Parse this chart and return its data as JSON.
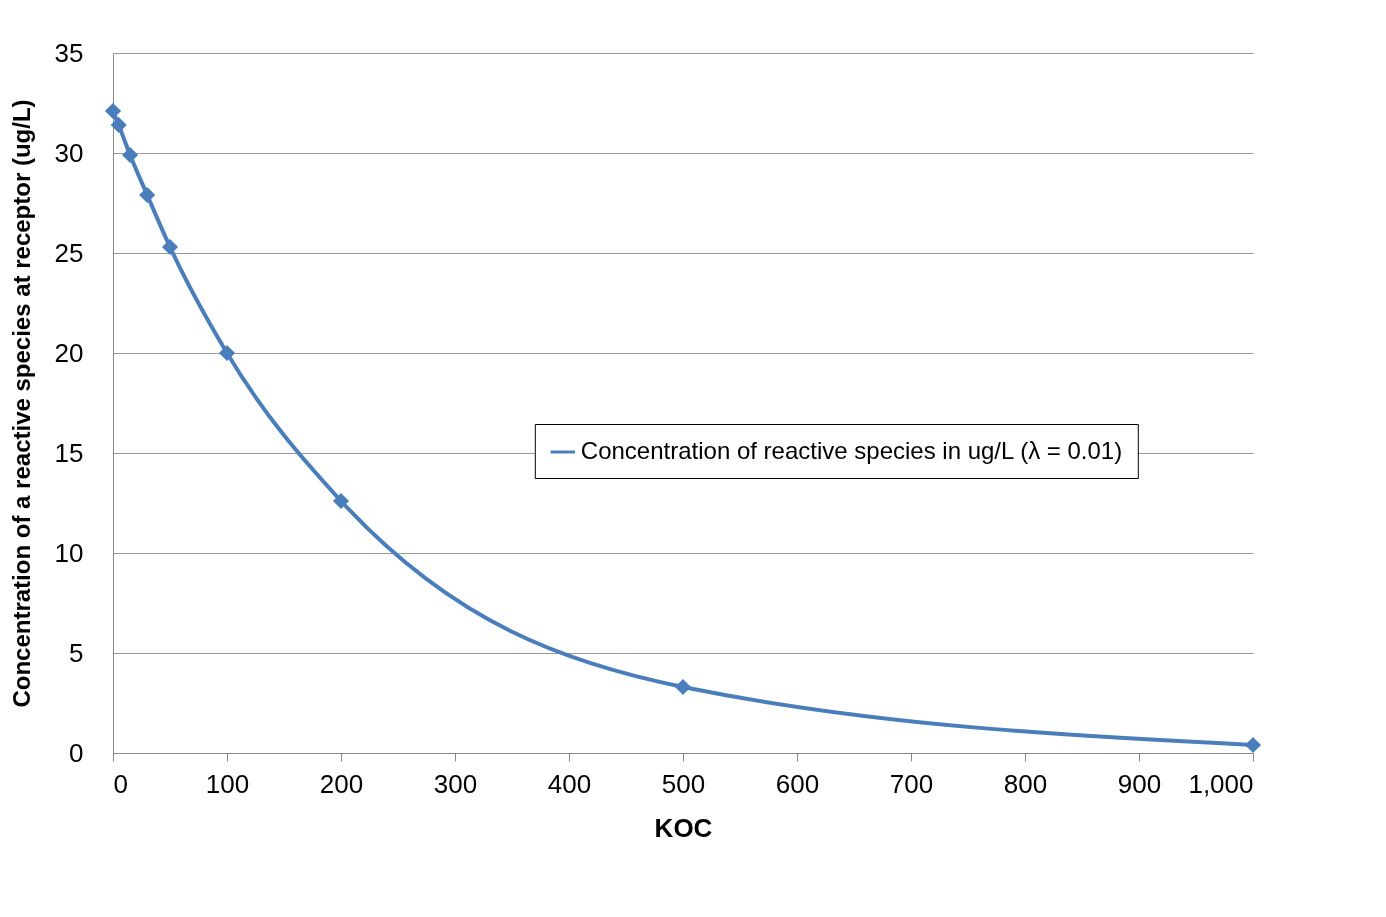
{
  "chart_data": {
    "type": "line",
    "xlabel": "KOC",
    "ylabel": "Concentration  of a reactive species  at receptor (ug/L)",
    "x": [
      0,
      5,
      15,
      30,
      50,
      100,
      200,
      500,
      1000
    ],
    "series": [
      {
        "name": "Concentration of reactive species in ug/L (λ = 0.01)",
        "color": "#4a7ebb",
        "values": [
          32.1,
          31.4,
          29.9,
          27.9,
          25.3,
          20.0,
          12.6,
          3.3,
          0.4
        ]
      }
    ],
    "xlim": [
      0,
      1000
    ],
    "xticks": [
      0,
      100,
      200,
      300,
      400,
      500,
      600,
      700,
      800,
      900,
      {
        "value": 1000,
        "label": "1,000"
      }
    ],
    "ylim": [
      0,
      35
    ],
    "yticks": [
      0,
      5,
      10,
      15,
      20,
      25,
      30,
      35
    ],
    "grid": "y",
    "legend": "right",
    "marker": "diamond",
    "line_style": "solid"
  }
}
